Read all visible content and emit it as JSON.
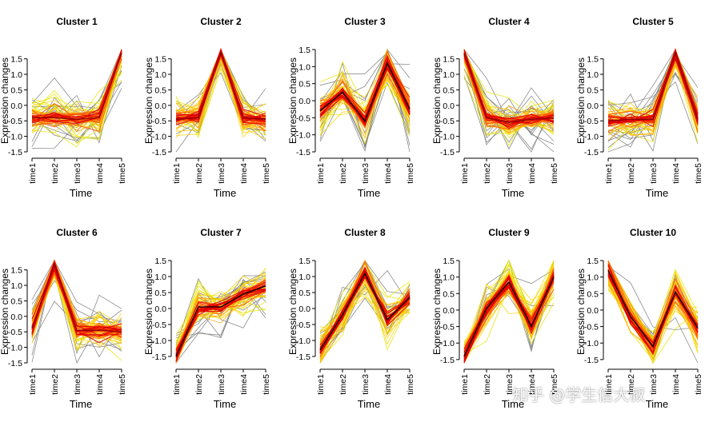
{
  "chart_data": {
    "type": "line",
    "xlabel": "Time",
    "ylabel": "Expression changes",
    "x_ticks": [
      "time1",
      "time2",
      "time3",
      "time4",
      "time5"
    ],
    "panels": [
      {
        "title": "Cluster 1",
        "ylim": [
          -1.5,
          1.8
        ],
        "yticks": [
          -1.5,
          -1.0,
          -0.5,
          0.0,
          0.5,
          1.0,
          1.5
        ],
        "centroid": [
          -0.4,
          -0.4,
          -0.45,
          -0.4,
          1.7
        ],
        "centroid_color": "#8b0000"
      },
      {
        "title": "Cluster 2",
        "ylim": [
          -1.5,
          1.8
        ],
        "yticks": [
          -1.5,
          -1.0,
          -0.5,
          0.0,
          0.5,
          1.0,
          1.5
        ],
        "centroid": [
          -0.45,
          -0.4,
          1.7,
          -0.4,
          -0.45
        ],
        "centroid_color": "#8b0000"
      },
      {
        "title": "Cluster 3",
        "ylim": [
          -1.5,
          1.5
        ],
        "yticks": [
          -1.5,
          -1.0,
          -0.5,
          0.0,
          0.5,
          1.0,
          1.5
        ],
        "centroid": [
          -0.3,
          0.25,
          -0.6,
          1.1,
          -0.25
        ],
        "centroid_color": "#000000"
      },
      {
        "title": "Cluster 4",
        "ylim": [
          -1.5,
          1.8
        ],
        "yticks": [
          -1.5,
          -1.0,
          -0.5,
          0.0,
          0.5,
          1.0,
          1.5
        ],
        "centroid": [
          1.7,
          -0.4,
          -0.55,
          -0.45,
          -0.4
        ],
        "centroid_color": "#8b0000"
      },
      {
        "title": "Cluster 5",
        "ylim": [
          -1.5,
          1.8
        ],
        "yticks": [
          -1.5,
          -1.0,
          -0.5,
          0.0,
          0.5,
          1.0,
          1.5
        ],
        "centroid": [
          -0.5,
          -0.45,
          -0.45,
          1.7,
          -0.45
        ],
        "centroid_color": "#8b0000"
      },
      {
        "title": "Cluster 6",
        "ylim": [
          -1.5,
          1.8
        ],
        "yticks": [
          -1.5,
          -1.0,
          -0.5,
          0.0,
          0.5,
          1.0,
          1.5
        ],
        "centroid": [
          -0.4,
          1.7,
          -0.45,
          -0.45,
          -0.5
        ],
        "centroid_color": "#8b0000"
      },
      {
        "title": "Cluster 7",
        "ylim": [
          -1.7,
          1.5
        ],
        "yticks": [
          -1.5,
          -1.0,
          -0.5,
          0.0,
          0.5,
          1.0,
          1.5
        ],
        "centroid": [
          -1.5,
          0.05,
          0.05,
          0.45,
          0.7
        ],
        "centroid_color": "#000000"
      },
      {
        "title": "Cluster 8",
        "ylim": [
          -1.7,
          1.5
        ],
        "yticks": [
          -1.5,
          -1.0,
          -0.5,
          0.0,
          0.5,
          1.0,
          1.5
        ],
        "centroid": [
          -1.3,
          -0.2,
          1.1,
          -0.35,
          0.35
        ],
        "centroid_color": "#000000"
      },
      {
        "title": "Cluster 9",
        "ylim": [
          -1.6,
          1.5
        ],
        "yticks": [
          -1.5,
          -1.0,
          -0.5,
          0.0,
          0.5,
          1.0,
          1.5
        ],
        "centroid": [
          -1.4,
          0.05,
          0.85,
          -0.5,
          1.0
        ],
        "centroid_color": "#000000"
      },
      {
        "title": "Cluster 10",
        "ylim": [
          -1.6,
          1.5
        ],
        "yticks": [
          -1.5,
          -1.0,
          -0.5,
          0.0,
          0.5,
          1.0,
          1.5
        ],
        "centroid": [
          1.2,
          -0.2,
          -1.1,
          0.55,
          -0.55
        ],
        "centroid_color": "#000000"
      }
    ],
    "member_colors": [
      "#808080",
      "#e6e600",
      "#ffd000",
      "#ffa500",
      "#ff5a00",
      "#e00000"
    ],
    "grid": false,
    "legend": "none"
  },
  "watermark": "知乎 @学生信大叔"
}
